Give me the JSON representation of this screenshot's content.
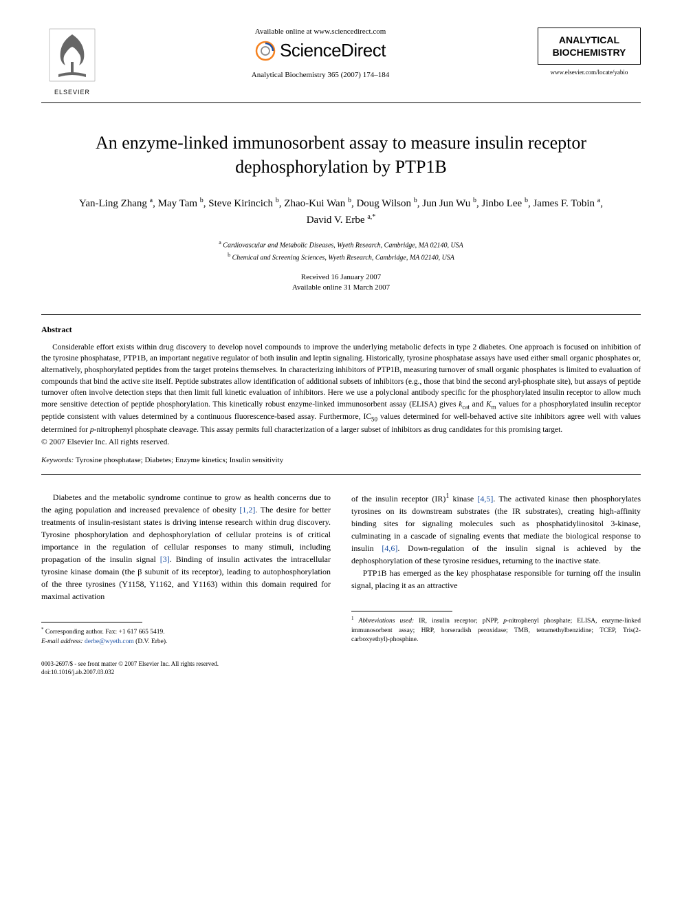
{
  "header": {
    "elsevier_label": "ELSEVIER",
    "available_online": "Available online at www.sciencedirect.com",
    "sciencedirect": "ScienceDirect",
    "journal_ref": "Analytical Biochemistry 365 (2007) 174–184",
    "journal_box_line1": "ANALYTICAL",
    "journal_box_line2": "BIOCHEMISTRY",
    "journal_url": "www.elsevier.com/locate/yabio"
  },
  "title": "An enzyme-linked immunosorbent assay to measure insulin receptor dephosphorylation by PTP1B",
  "authors_html": "Yan-Ling Zhang <sup>a</sup>, May Tam <sup>b</sup>, Steve Kirincich <sup>b</sup>, Zhao-Kui Wan <sup>b</sup>, Doug Wilson <sup>b</sup>, Jun Jun Wu <sup>b</sup>, Jinbo Lee <sup>b</sup>, James F. Tobin <sup>a</sup>, David V. Erbe <sup>a,*</sup>",
  "affiliations": {
    "a": "Cardiovascular and Metabolic Diseases, Wyeth Research, Cambridge, MA 02140, USA",
    "b": "Chemical and Screening Sciences, Wyeth Research, Cambridge, MA 02140, USA"
  },
  "dates": {
    "received": "Received 16 January 2007",
    "online": "Available online 31 March 2007"
  },
  "abstract_heading": "Abstract",
  "abstract_body": "Considerable effort exists within drug discovery to develop novel compounds to improve the underlying metabolic defects in type 2 diabetes. One approach is focused on inhibition of the tyrosine phosphatase, PTP1B, an important negative regulator of both insulin and leptin signaling. Historically, tyrosine phosphatase assays have used either small organic phosphates or, alternatively, phosphorylated peptides from the target proteins themselves. In characterizing inhibitors of PTP1B, measuring turnover of small organic phosphates is limited to evaluation of compounds that bind the active site itself. Peptide substrates allow identification of additional subsets of inhibitors (e.g., those that bind the second aryl-phosphate site), but assays of peptide turnover often involve detection steps that then limit full kinetic evaluation of inhibitors. Here we use a polyclonal antibody specific for the phosphorylated insulin receptor to allow much more sensitive detection of peptide phosphorylation. This kinetically robust enzyme-linked immunosorbent assay (ELISA) gives kcat and Km values for a phosphorylated insulin receptor peptide consistent with values determined by a continuous fluorescence-based assay. Furthermore, IC50 values determined for well-behaved active site inhibitors agree well with values determined for p-nitrophenyl phosphate cleavage. This assay permits full characterization of a larger subset of inhibitors as drug candidates for this promising target.",
  "copyright": "© 2007 Elsevier Inc. All rights reserved.",
  "keywords_label": "Keywords:",
  "keywords_value": "Tyrosine phosphatase; Diabetes; Enzyme kinetics; Insulin sensitivity",
  "body": {
    "left_p1": "Diabetes and the metabolic syndrome continue to grow as health concerns due to the aging population and increased prevalence of obesity [1,2]. The desire for better treatments of insulin-resistant states is driving intense research within drug discovery. Tyrosine phosphorylation and dephosphorylation of cellular proteins is of critical importance in the regulation of cellular responses to many stimuli, including propagation of the insulin signal [3]. Binding of insulin activates the intracellular tyrosine kinase domain (the β subunit of its receptor), leading to autophosphorylation of the three tyrosines (Y1158, Y1162, and Y1163) within this domain required for maximal activation",
    "right_p1": "of the insulin receptor (IR)¹ kinase [4,5]. The activated kinase then phosphorylates tyrosines on its downstream substrates (the IR substrates), creating high-affinity binding sites for signaling molecules such as phosphatidylinositol 3-kinase, culminating in a cascade of signaling events that mediate the biological response to insulin [4,6]. Down-regulation of the insulin signal is achieved by the dephosphorylation of these tyrosine residues, returning to the inactive state.",
    "right_p2": "PTP1B has emerged as the key phosphatase responsible for turning off the insulin signal, placing it as an attractive"
  },
  "footnotes": {
    "left_corresponding": "Corresponding author. Fax: +1 617 665 5419.",
    "left_email_label": "E-mail address:",
    "left_email": "derbe@wyeth.com",
    "left_email_name": "(D.V. Erbe).",
    "right_abbrev_label": "Abbreviations used:",
    "right_abbrev": "IR, insulin receptor; pNPP, p-nitrophenyl phosphate; ELISA, enzyme-linked immunosorbent assay; HRP, horseradish peroxidase; TMB, tetramethylbenzidine; TCEP, Tris(2-carboxyethyl)-phosphine."
  },
  "bottom": {
    "issn_line": "0003-2697/$ - see front matter © 2007 Elsevier Inc. All rights reserved.",
    "doi": "doi:10.1016/j.ab.2007.03.032"
  },
  "refs": {
    "r12": "[1,2]",
    "r3": "[3]",
    "r45": "[4,5]",
    "r46": "[4,6]"
  },
  "colors": {
    "link": "#1a4fa3",
    "elsevier_orange": "#f58220",
    "sd_blue": "#1a4fa3"
  }
}
